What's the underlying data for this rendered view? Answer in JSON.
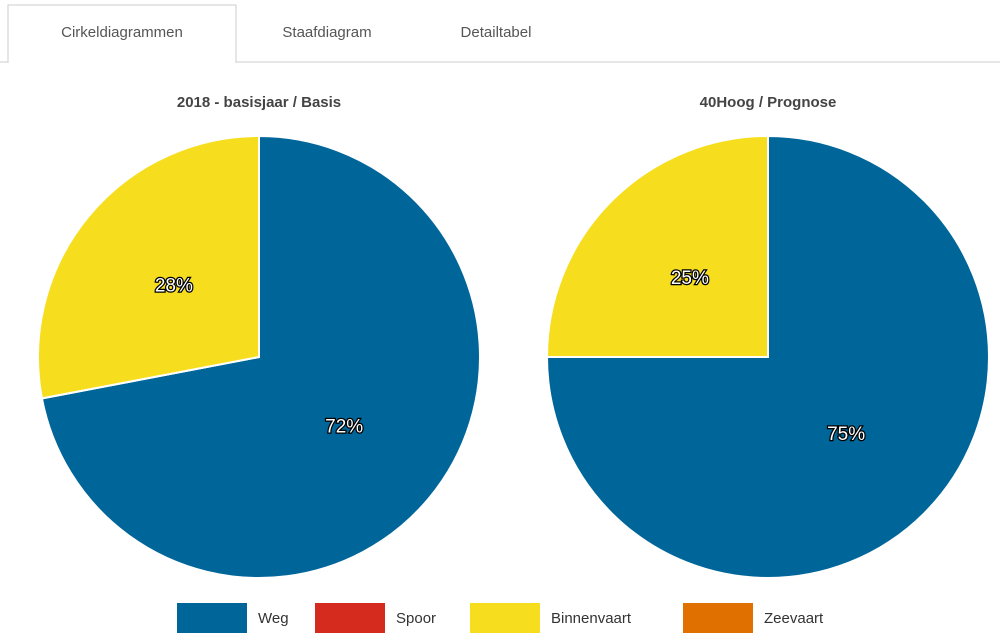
{
  "tabs": [
    "Cirkeldiagrammen",
    "Staafdiagram",
    "Detailtabel"
  ],
  "legend": {
    "categories": [
      "Weg",
      "Spoor",
      "Binnenvaart",
      "Zeevaart"
    ],
    "colors": [
      "#006699",
      "#d52b1e",
      "#f6de1e",
      "#e07000"
    ]
  },
  "chart_data": [
    {
      "type": "pie",
      "title": "2018 - basisjaar / Basis",
      "values": [
        72,
        0,
        28,
        0
      ],
      "value_labels": [
        "72%",
        null,
        "28%",
        null
      ]
    },
    {
      "type": "pie",
      "title": "40Hoog / Prognose",
      "values": [
        75,
        0,
        25,
        0
      ],
      "value_labels": [
        "75%",
        null,
        "25%",
        null
      ]
    }
  ]
}
